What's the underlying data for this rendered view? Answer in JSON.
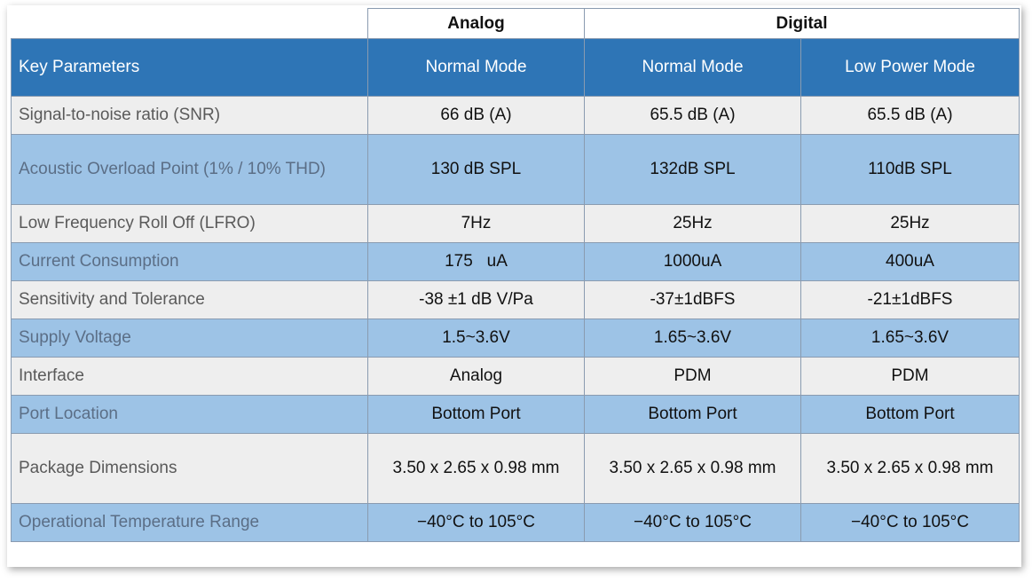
{
  "groups": {
    "analog": "Analog",
    "digital": "Digital"
  },
  "header": {
    "key": "Key Parameters",
    "modes": [
      "Normal Mode",
      "Normal Mode",
      "Low Power Mode"
    ]
  },
  "rows": [
    {
      "param": "Signal-to-noise ratio (SNR)",
      "values": [
        "66 dB (A)",
        "65.5 dB (A)",
        "65.5 dB (A)"
      ]
    },
    {
      "param": "Acoustic Overload Point (1% / 10% THD)",
      "values": [
        "130 dB SPL",
        "132dB SPL",
        "110dB SPL"
      ]
    },
    {
      "param": "Low Frequency Roll Off (LFRO)",
      "values": [
        "7Hz",
        "25Hz",
        "25Hz"
      ]
    },
    {
      "param": "Current Consumption",
      "values": [
        "175   uA",
        "1000uA",
        "400uA"
      ]
    },
    {
      "param": "Sensitivity and Tolerance",
      "values": [
        "-38 ±1 dB V/Pa",
        "-37±1dBFS",
        "-21±1dBFS"
      ]
    },
    {
      "param": "Supply Voltage",
      "values": [
        "1.5~3.6V",
        "1.65~3.6V",
        "1.65~3.6V"
      ]
    },
    {
      "param": "Interface",
      "values": [
        "Analog",
        "PDM",
        "PDM"
      ]
    },
    {
      "param": "Port Location",
      "values": [
        "Bottom Port",
        "Bottom Port",
        "Bottom Port"
      ]
    },
    {
      "param": "Package Dimensions",
      "values": [
        "3.50 x 2.65 x 0.98 mm",
        "3.50 x 2.65 x 0.98 mm",
        "3.50 x 2.65 x 0.98 mm"
      ]
    },
    {
      "param": "Operational Temperature Range",
      "values": [
        "−40°C to 105°C",
        "−40°C to 105°C",
        "−40°C to 105°C"
      ]
    }
  ],
  "colors": {
    "header_blue": "#2e75b6",
    "row_light_blue": "#9dc3e6",
    "row_gray": "#eeeeee"
  }
}
